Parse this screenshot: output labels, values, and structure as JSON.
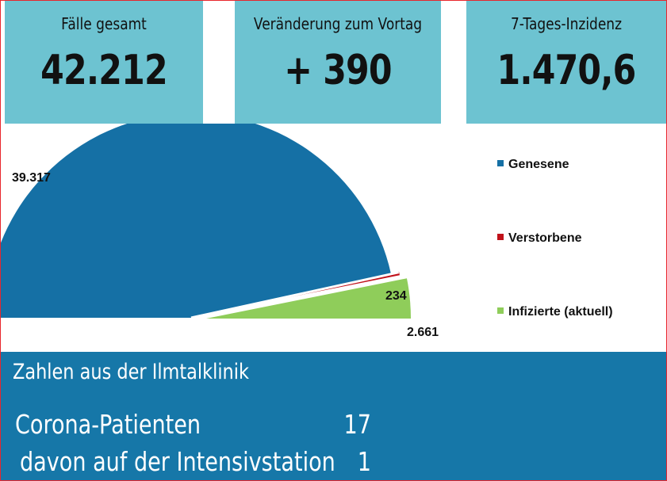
{
  "stats": [
    {
      "label": "Fälle gesamt",
      "value": "42.212"
    },
    {
      "label": "Veränderung zum Vortag",
      "value": "+ 390"
    },
    {
      "label": "7-Tages-Inzidenz",
      "value": "1.470,6"
    }
  ],
  "chart_data": {
    "type": "pie",
    "categories": [
      "Genesene",
      "Verstorbene",
      "Infizierte (aktuell)"
    ],
    "values": [
      39317,
      234,
      2661
    ],
    "value_labels": [
      "39.317",
      "234",
      "2.661"
    ],
    "colors": [
      "#1570a5",
      "#c0111a",
      "#8fcd5a"
    ],
    "legend_position": "right",
    "exploded": true
  },
  "klinik": {
    "title": "Zahlen aus der Ilmtalklinik",
    "rows": [
      {
        "label": "Corona-Patienten",
        "value": "17"
      },
      {
        "label": "davon auf der Intensivstation",
        "value": "1"
      }
    ]
  }
}
